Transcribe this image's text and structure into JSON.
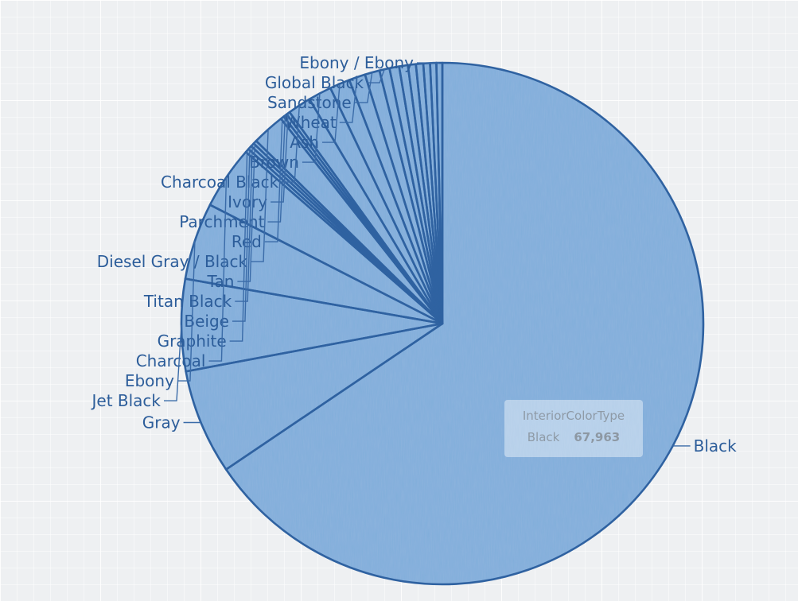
{
  "chart_data": {
    "type": "pie",
    "field": "InteriorColorType",
    "slices": [
      {
        "label": "Black",
        "value": 67963
      },
      {
        "label": "Gray",
        "value": 6750
      },
      {
        "label": "Jet Black",
        "value": 5900
      },
      {
        "label": "Ebony",
        "value": 4950
      },
      {
        "label": "Charcoal",
        "value": 4050
      },
      {
        "label": "Graphite",
        "value": 250
      },
      {
        "label": "Beige",
        "value": 250
      },
      {
        "label": "Titan Black",
        "value": 230
      },
      {
        "label": "Tan",
        "value": 230
      },
      {
        "label": "Diesel Gray / Black",
        "value": 2100
      },
      {
        "label": "Red",
        "value": 230
      },
      {
        "label": "Parchment",
        "value": 230
      },
      {
        "label": "Ivory",
        "value": 230
      },
      {
        "label": "Charcoal Black",
        "value": 1500
      },
      {
        "label": "Brown",
        "value": 1500
      },
      {
        "label": "Ash",
        "value": 1300
      },
      {
        "label": "Wheat",
        "value": 1050
      },
      {
        "label": "Sandstone",
        "value": 950
      },
      {
        "label": "Global Black",
        "value": 650
      },
      {
        "label": "",
        "value": 620
      },
      {
        "label": "",
        "value": 560
      },
      {
        "label": "",
        "value": 510
      },
      {
        "label": "",
        "value": 470
      },
      {
        "label": "",
        "value": 430
      },
      {
        "label": "",
        "value": 400
      },
      {
        "label": "Ebony / Ebony",
        "value": 380
      }
    ],
    "colors": {
      "fill": "#8bb2dd",
      "stroke": "#2f62a1",
      "label": "#2c5d9a",
      "leader": "#3a6ba8"
    }
  },
  "tooltip": {
    "title": "InteriorColorType",
    "label": "Black",
    "value": "67,963"
  }
}
